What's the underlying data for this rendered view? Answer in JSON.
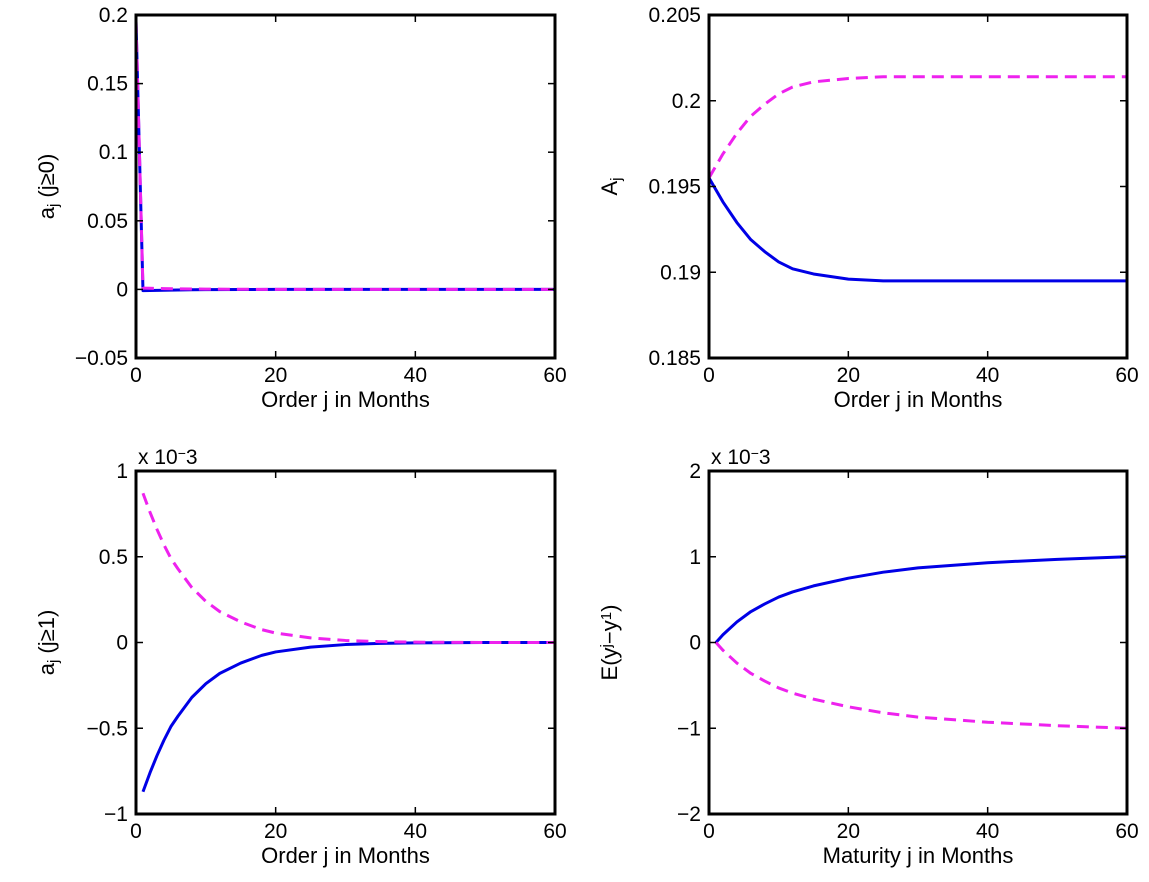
{
  "chart_data": [
    {
      "type": "line",
      "xlabel": "Order j in Months",
      "ylabel": "a_j (j≥0)",
      "xlim": [
        0,
        60
      ],
      "ylim": [
        -0.05,
        0.2
      ],
      "xticks": [
        0,
        20,
        40,
        60
      ],
      "yticks": [
        -0.05,
        0,
        0.05,
        0.1,
        0.15,
        0.2
      ],
      "xtick_labels": [
        "0",
        "20",
        "40",
        "60"
      ],
      "ytick_labels": [
        "−0.05",
        "0",
        "0.05",
        "0.1",
        "0.15",
        "0.2"
      ],
      "grid": false,
      "series": [
        {
          "color": "#0000e6",
          "dash": "solid",
          "points": [
            [
              0,
              0.1955
            ],
            [
              1,
              -0.0009
            ],
            [
              2,
              -0.0008
            ],
            [
              4,
              -0.0006
            ],
            [
              6,
              -0.0004
            ],
            [
              8,
              -0.0003
            ],
            [
              10,
              -0.0002
            ],
            [
              15,
              -0.0001
            ],
            [
              20,
              0.0
            ],
            [
              30,
              0.0
            ],
            [
              40,
              0.0
            ],
            [
              60,
              0.0
            ]
          ]
        },
        {
          "color": "#ee22ee",
          "dash": "dashed",
          "points": [
            [
              0,
              0.1955
            ],
            [
              1,
              0.0009
            ],
            [
              2,
              0.0008
            ],
            [
              4,
              0.0006
            ],
            [
              6,
              0.0004
            ],
            [
              8,
              0.0003
            ],
            [
              10,
              0.0002
            ],
            [
              15,
              0.0001
            ],
            [
              20,
              0.0
            ],
            [
              30,
              0.0
            ],
            [
              40,
              0.0
            ],
            [
              60,
              0.0
            ]
          ]
        }
      ]
    },
    {
      "type": "line",
      "xlabel": "Order j in Months",
      "ylabel": "A_j",
      "xlim": [
        0,
        60
      ],
      "ylim": [
        0.185,
        0.205
      ],
      "xticks": [
        0,
        20,
        40,
        60
      ],
      "yticks": [
        0.185,
        0.19,
        0.195,
        0.2,
        0.205
      ],
      "xtick_labels": [
        "0",
        "20",
        "40",
        "60"
      ],
      "ytick_labels": [
        "0.185",
        "0.19",
        "0.195",
        "0.2",
        "0.205"
      ],
      "grid": false,
      "series": [
        {
          "color": "#0000e6",
          "dash": "solid",
          "points": [
            [
              0,
              0.1955
            ],
            [
              2,
              0.1941
            ],
            [
              4,
              0.1929
            ],
            [
              6,
              0.1919
            ],
            [
              8,
              0.1912
            ],
            [
              10,
              0.1906
            ],
            [
              12,
              0.1902
            ],
            [
              15,
              0.1899
            ],
            [
              20,
              0.1896
            ],
            [
              25,
              0.1895
            ],
            [
              30,
              0.1895
            ],
            [
              40,
              0.1895
            ],
            [
              50,
              0.1895
            ],
            [
              60,
              0.1895
            ]
          ]
        },
        {
          "color": "#ee22ee",
          "dash": "dashed",
          "points": [
            [
              0,
              0.1955
            ],
            [
              2,
              0.1969
            ],
            [
              4,
              0.1981
            ],
            [
              6,
              0.1991
            ],
            [
              8,
              0.1998
            ],
            [
              10,
              0.2004
            ],
            [
              12,
              0.2008
            ],
            [
              15,
              0.2011
            ],
            [
              20,
              0.2013
            ],
            [
              25,
              0.2014
            ],
            [
              30,
              0.2014
            ],
            [
              40,
              0.2014
            ],
            [
              50,
              0.2014
            ],
            [
              60,
              0.2014
            ]
          ]
        }
      ]
    },
    {
      "type": "line",
      "xlabel": "Order j in Months",
      "ylabel": "a_j (j≥1)",
      "exponent": "x 10^−3",
      "xlim": [
        0,
        60
      ],
      "ylim": [
        -1,
        1
      ],
      "xticks": [
        0,
        20,
        40,
        60
      ],
      "yticks": [
        -1,
        -0.5,
        0,
        0.5,
        1
      ],
      "xtick_labels": [
        "0",
        "20",
        "40",
        "60"
      ],
      "ytick_labels": [
        "−1",
        "−0.5",
        "0",
        "0.5",
        "1"
      ],
      "grid": false,
      "series": [
        {
          "color": "#0000e6",
          "dash": "solid",
          "points": [
            [
              1,
              -0.87
            ],
            [
              2,
              -0.76
            ],
            [
              3,
              -0.66
            ],
            [
              4,
              -0.57
            ],
            [
              5,
              -0.49
            ],
            [
              6,
              -0.43
            ],
            [
              8,
              -0.32
            ],
            [
              10,
              -0.24
            ],
            [
              12,
              -0.18
            ],
            [
              15,
              -0.12
            ],
            [
              18,
              -0.075
            ],
            [
              20,
              -0.055
            ],
            [
              25,
              -0.027
            ],
            [
              30,
              -0.012
            ],
            [
              35,
              -0.005
            ],
            [
              40,
              -0.002
            ],
            [
              50,
              0.0
            ],
            [
              60,
              0.0
            ]
          ]
        },
        {
          "color": "#ee22ee",
          "dash": "dashed",
          "points": [
            [
              1,
              0.87
            ],
            [
              2,
              0.76
            ],
            [
              3,
              0.66
            ],
            [
              4,
              0.57
            ],
            [
              5,
              0.49
            ],
            [
              6,
              0.43
            ],
            [
              8,
              0.32
            ],
            [
              10,
              0.24
            ],
            [
              12,
              0.18
            ],
            [
              15,
              0.12
            ],
            [
              18,
              0.075
            ],
            [
              20,
              0.055
            ],
            [
              25,
              0.027
            ],
            [
              30,
              0.012
            ],
            [
              35,
              0.005
            ],
            [
              40,
              0.002
            ],
            [
              50,
              0.0
            ],
            [
              60,
              0.0
            ]
          ]
        }
      ]
    },
    {
      "type": "line",
      "xlabel": "Maturity j in Months",
      "ylabel": "E(y^j−y^1)",
      "exponent": "x 10^−3",
      "xlim": [
        0,
        60
      ],
      "ylim": [
        -2,
        2
      ],
      "xticks": [
        0,
        20,
        40,
        60
      ],
      "yticks": [
        -2,
        -1,
        0,
        1,
        2
      ],
      "xtick_labels": [
        "0",
        "20",
        "40",
        "60"
      ],
      "ytick_labels": [
        "−2",
        "−1",
        "0",
        "1",
        "2"
      ],
      "grid": false,
      "series": [
        {
          "color": "#0000e6",
          "dash": "solid",
          "points": [
            [
              1,
              0.0
            ],
            [
              2,
              0.09
            ],
            [
              4,
              0.24
            ],
            [
              6,
              0.36
            ],
            [
              8,
              0.45
            ],
            [
              10,
              0.53
            ],
            [
              12,
              0.59
            ],
            [
              15,
              0.66
            ],
            [
              20,
              0.75
            ],
            [
              25,
              0.82
            ],
            [
              30,
              0.87
            ],
            [
              40,
              0.93
            ],
            [
              50,
              0.97
            ],
            [
              60,
              1.0
            ]
          ]
        },
        {
          "color": "#ee22ee",
          "dash": "dashed",
          "points": [
            [
              1,
              0.0
            ],
            [
              2,
              -0.09
            ],
            [
              4,
              -0.24
            ],
            [
              6,
              -0.36
            ],
            [
              8,
              -0.45
            ],
            [
              10,
              -0.53
            ],
            [
              12,
              -0.59
            ],
            [
              15,
              -0.66
            ],
            [
              20,
              -0.75
            ],
            [
              25,
              -0.82
            ],
            [
              30,
              -0.87
            ],
            [
              40,
              -0.93
            ],
            [
              50,
              -0.97
            ],
            [
              60,
              -1.0
            ]
          ]
        }
      ]
    }
  ]
}
